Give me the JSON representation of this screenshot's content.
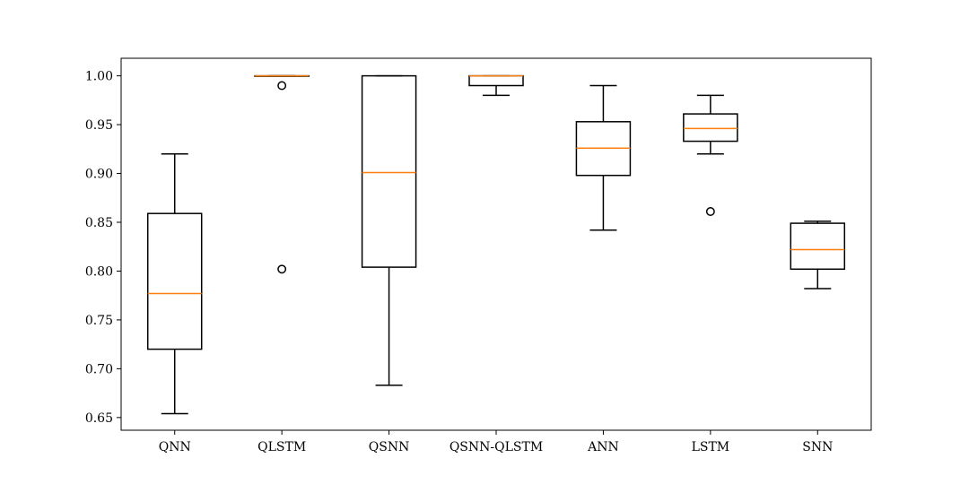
{
  "chart_data": {
    "type": "boxplot",
    "title": "",
    "xlabel": "",
    "ylabel": "",
    "ylim": [
      0.637,
      1.018
    ],
    "yticks": [
      "0.65",
      "0.70",
      "0.75",
      "0.80",
      "0.85",
      "0.90",
      "0.95",
      "1.00"
    ],
    "grid": false,
    "median_color": "#ff7f0e",
    "box_color": "#000000",
    "categories": [
      "QNN",
      "QLSTM",
      "QSNN",
      "QSNN-QLSTM",
      "ANN",
      "LSTM",
      "SNN"
    ],
    "boxes": [
      {
        "label": "QNN",
        "whisker_low": 0.654,
        "q1": 0.72,
        "median": 0.777,
        "q3": 0.859,
        "whisker_high": 0.92,
        "outliers": []
      },
      {
        "label": "QLSTM",
        "whisker_low": 1.0,
        "q1": 1.0,
        "median": 1.0,
        "q3": 1.0,
        "whisker_high": 1.0,
        "outliers": [
          0.99,
          0.802
        ]
      },
      {
        "label": "QSNN",
        "whisker_low": 0.683,
        "q1": 0.804,
        "median": 0.901,
        "q3": 1.0,
        "whisker_high": 1.0,
        "outliers": []
      },
      {
        "label": "QSNN-QLSTM",
        "whisker_low": 0.98,
        "q1": 0.99,
        "median": 1.0,
        "q3": 1.0,
        "whisker_high": 1.0,
        "outliers": []
      },
      {
        "label": "ANN",
        "whisker_low": 0.842,
        "q1": 0.898,
        "median": 0.926,
        "q3": 0.953,
        "whisker_high": 0.99,
        "outliers": []
      },
      {
        "label": "LSTM",
        "whisker_low": 0.92,
        "q1": 0.933,
        "median": 0.946,
        "q3": 0.961,
        "whisker_high": 0.98,
        "outliers": [
          0.861
        ]
      },
      {
        "label": "SNN",
        "whisker_low": 0.782,
        "q1": 0.802,
        "median": 0.822,
        "q3": 0.849,
        "whisker_high": 0.851,
        "outliers": []
      }
    ]
  }
}
